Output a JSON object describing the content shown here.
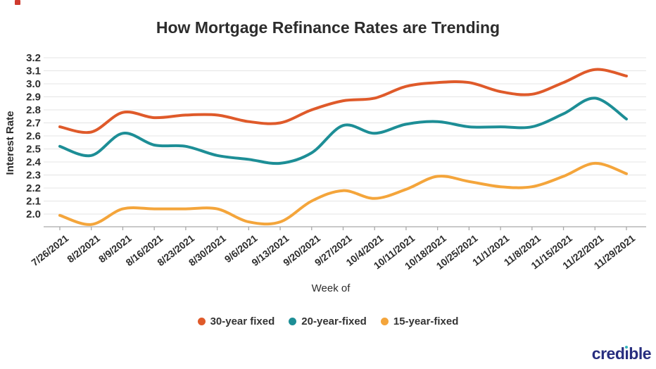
{
  "title": "How Mortgage Refinance Rates are Trending",
  "chart_data": {
    "type": "line",
    "title": "How Mortgage Refinance Rates are Trending",
    "xlabel": "Week of",
    "ylabel": "Interest Rate",
    "ylim": [
      1.9,
      3.2
    ],
    "grid": true,
    "legend_position": "bottom",
    "y_ticks": [
      "3.2",
      "3.1",
      "3.0",
      "2.9",
      "2.8",
      "2.7",
      "2.6",
      "2.5",
      "2.4",
      "2.3",
      "2.2",
      "2.1",
      "2.0"
    ],
    "categories": [
      "7/26/2021",
      "8/2/2021",
      "8/9/2021",
      "8/16/2021",
      "8/23/2021",
      "8/30/2021",
      "9/6/2021",
      "9/13/2021",
      "9/20/2021",
      "9/27/2021",
      "10/4/2021",
      "10/11/2021",
      "10/18/2021",
      "10/25/2021",
      "11/1/2021",
      "11/8/2021",
      "11/15/2021",
      "11/22/2021",
      "11/29/2021"
    ],
    "series": [
      {
        "name": "30-year fixed",
        "color": "#df5a2a",
        "values": [
          2.67,
          2.63,
          2.78,
          2.74,
          2.76,
          2.76,
          2.71,
          2.7,
          2.8,
          2.87,
          2.89,
          2.98,
          3.01,
          3.01,
          2.94,
          2.92,
          3.01,
          3.11,
          3.06
        ]
      },
      {
        "name": "20-year-fixed",
        "color": "#1d8e96",
        "values": [
          2.52,
          2.45,
          2.62,
          2.53,
          2.52,
          2.45,
          2.42,
          2.39,
          2.47,
          2.68,
          2.62,
          2.69,
          2.71,
          2.67,
          2.67,
          2.67,
          2.77,
          2.89,
          2.73
        ]
      },
      {
        "name": "15-year-fixed",
        "color": "#f4a53b",
        "values": [
          1.99,
          1.92,
          2.04,
          2.04,
          2.04,
          2.04,
          1.94,
          1.94,
          2.1,
          2.18,
          2.12,
          2.19,
          2.29,
          2.25,
          2.21,
          2.21,
          2.29,
          2.39,
          2.31
        ]
      }
    ]
  },
  "colors": {
    "grid": "#e4e4e4",
    "axis": "#a9a9a9",
    "text": "#2d2d2d"
  },
  "brand": {
    "name": "credible",
    "pre": "cred",
    "i_base": "ı",
    "post": "ble",
    "color": "#282e7f",
    "dot_color": "#35b6bf"
  }
}
